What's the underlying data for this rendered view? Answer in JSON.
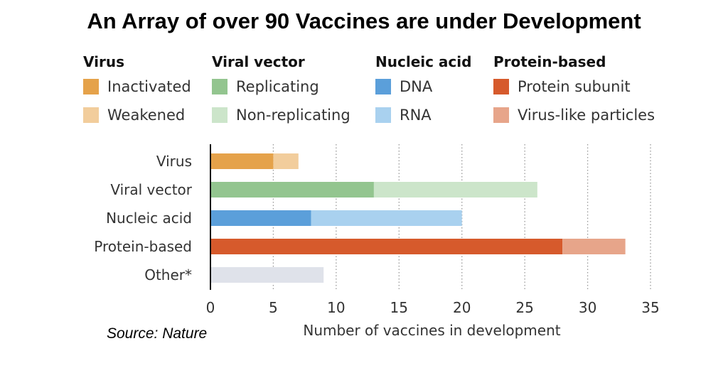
{
  "title": "An Array of over 90 Vaccines are under Development",
  "source": "Source: Nature",
  "legend": [
    {
      "header": "Virus",
      "items": [
        {
          "label": "Inactivated",
          "color": "#E5A24A"
        },
        {
          "label": "Weakened",
          "color": "#F2CD9C"
        }
      ]
    },
    {
      "header": "Viral vector",
      "items": [
        {
          "label": "Replicating",
          "color": "#93C58F"
        },
        {
          "label": "Non-replicating",
          "color": "#CCE5CA"
        }
      ]
    },
    {
      "header": "Nucleic acid",
      "items": [
        {
          "label": "DNA",
          "color": "#5B9FDA"
        },
        {
          "label": "RNA",
          "color": "#A9D1EF"
        }
      ]
    },
    {
      "header": "Protein-based",
      "items": [
        {
          "label": "Protein subunit",
          "color": "#D65A2C"
        },
        {
          "label": "Virus-like particles",
          "color": "#E7A58A"
        }
      ]
    }
  ],
  "chart_data": {
    "type": "bar",
    "orientation": "horizontal",
    "stacked": true,
    "xlabel": "Number of vaccines in development",
    "ylabel": "",
    "xlim": [
      0,
      35
    ],
    "xticks": [
      0,
      5,
      10,
      15,
      20,
      25,
      30,
      35
    ],
    "grid": "vertical dotted",
    "categories": [
      "Virus",
      "Viral vector",
      "Nucleic acid",
      "Protein-based",
      "Other*"
    ],
    "bars": [
      {
        "category": "Virus",
        "segments": [
          {
            "series": "Inactivated",
            "value": 5,
            "color": "#E5A24A"
          },
          {
            "series": "Weakened",
            "value": 2,
            "color": "#F2CD9C"
          }
        ]
      },
      {
        "category": "Viral vector",
        "segments": [
          {
            "series": "Replicating",
            "value": 13,
            "color": "#93C58F"
          },
          {
            "series": "Non-replicating",
            "value": 13,
            "color": "#CCE5CA"
          }
        ]
      },
      {
        "category": "Nucleic acid",
        "segments": [
          {
            "series": "DNA",
            "value": 8,
            "color": "#5B9FDA"
          },
          {
            "series": "RNA",
            "value": 12,
            "color": "#A9D1EF"
          }
        ]
      },
      {
        "category": "Protein-based",
        "segments": [
          {
            "series": "Protein subunit",
            "value": 28,
            "color": "#D65A2C"
          },
          {
            "series": "Virus-like particles",
            "value": 5,
            "color": "#E7A58A"
          }
        ]
      },
      {
        "category": "Other*",
        "segments": [
          {
            "series": "Other*",
            "value": 9,
            "color": "#DFE2EA"
          }
        ]
      }
    ]
  }
}
